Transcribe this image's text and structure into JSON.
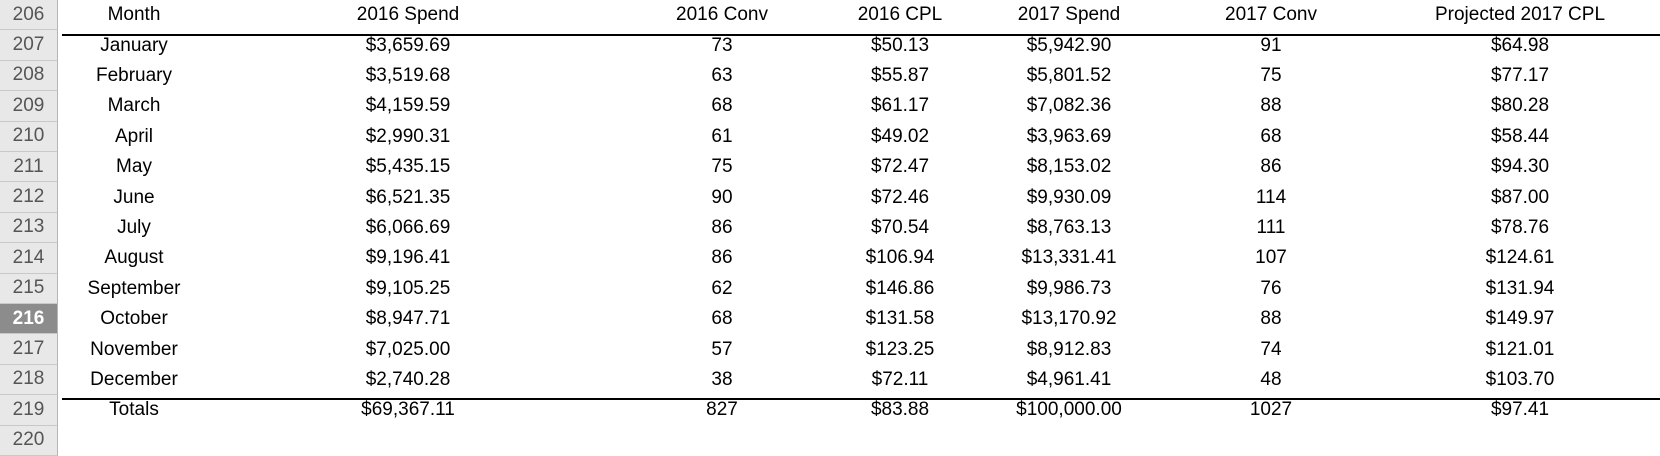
{
  "row_numbers": [
    "206",
    "207",
    "208",
    "209",
    "210",
    "211",
    "212",
    "213",
    "214",
    "215",
    "216",
    "217",
    "218",
    "219",
    "220"
  ],
  "table": {
    "header": [
      "Month",
      "2016 Spend",
      "2016 Conv",
      "2016 CPL",
      "2017 Spend",
      "2017 Conv",
      "Projected 2017 CPL"
    ],
    "rows": [
      [
        "January",
        "$3,659.69",
        "73",
        "$50.13",
        "$5,942.90",
        "91",
        "$64.98"
      ],
      [
        "February",
        "$3,519.68",
        "63",
        "$55.87",
        "$5,801.52",
        "75",
        "$77.17"
      ],
      [
        "March",
        "$4,159.59",
        "68",
        "$61.17",
        "$7,082.36",
        "88",
        "$80.28"
      ],
      [
        "April",
        "$2,990.31",
        "61",
        "$49.02",
        "$3,963.69",
        "68",
        "$58.44"
      ],
      [
        "May",
        "$5,435.15",
        "75",
        "$72.47",
        "$8,153.02",
        "86",
        "$94.30"
      ],
      [
        "June",
        "$6,521.35",
        "90",
        "$72.46",
        "$9,930.09",
        "114",
        "$87.00"
      ],
      [
        "July",
        "$6,066.69",
        "86",
        "$70.54",
        "$8,763.13",
        "111",
        "$78.76"
      ],
      [
        "August",
        "$9,196.41",
        "86",
        "$106.94",
        "$13,331.41",
        "107",
        "$124.61"
      ],
      [
        "September",
        "$9,105.25",
        "62",
        "$146.86",
        "$9,986.73",
        "76",
        "$131.94"
      ],
      [
        "October",
        "$8,947.71",
        "68",
        "$131.58",
        "$13,170.92",
        "88",
        "$149.97"
      ],
      [
        "November",
        "$7,025.00",
        "57",
        "$123.25",
        "$8,912.83",
        "74",
        "$121.01"
      ],
      [
        "December",
        "$2,740.28",
        "38",
        "$72.11",
        "$4,961.41",
        "48",
        "$103.70"
      ]
    ],
    "totals": [
      "Totals",
      "$69,367.11",
      "827",
      "$83.88",
      "$100,000.00",
      "1027",
      "$97.41"
    ]
  }
}
